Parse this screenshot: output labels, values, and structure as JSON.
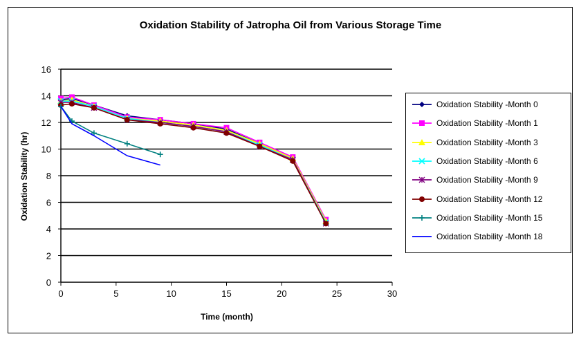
{
  "chart_data": {
    "type": "line",
    "title": "Oxidation Stability of Jatropha Oil from Various Storage Time",
    "xlabel": "Time (month)",
    "ylabel": "Oxidation Stability (hr)",
    "xlim": [
      0,
      30
    ],
    "ylim": [
      0,
      16
    ],
    "xticks": [
      0,
      5,
      10,
      15,
      20,
      25,
      30
    ],
    "yticks": [
      0,
      2,
      4,
      6,
      8,
      10,
      12,
      14,
      16
    ],
    "grid": "horizontal",
    "legend_position": "right",
    "series": [
      {
        "name": "Oxidation Stability -Month 0",
        "color": "#000080",
        "marker": "diamond",
        "x": [
          0,
          1,
          3,
          6,
          9,
          12,
          15,
          18,
          21,
          24
        ],
        "y": [
          13.7,
          13.8,
          13.3,
          12.5,
          12.2,
          11.9,
          11.5,
          10.4,
          9.3,
          4.5
        ]
      },
      {
        "name": "Oxidation Stability -Month 1",
        "color": "#FF00FF",
        "marker": "square",
        "x": [
          0,
          1,
          3,
          6,
          9,
          12,
          15,
          18,
          21,
          24
        ],
        "y": [
          13.8,
          13.9,
          13.3,
          12.4,
          12.2,
          11.9,
          11.6,
          10.5,
          9.4,
          4.7
        ]
      },
      {
        "name": "Oxidation Stability -Month 3",
        "color": "#FFFF00",
        "marker": "triangle",
        "x": [
          0,
          1,
          3,
          6,
          9,
          12,
          15,
          18,
          21,
          24
        ],
        "y": [
          13.6,
          13.7,
          13.2,
          12.3,
          12.1,
          11.8,
          11.4,
          10.4,
          9.3,
          4.6
        ]
      },
      {
        "name": "Oxidation Stability -Month 6",
        "color": "#00FFFF",
        "marker": "x",
        "x": [
          0,
          1,
          3,
          6,
          9,
          12,
          15,
          18,
          21,
          24
        ],
        "y": [
          13.6,
          13.6,
          13.2,
          12.3,
          12.0,
          11.7,
          11.3,
          10.3,
          9.2,
          4.5
        ]
      },
      {
        "name": "Oxidation Stability -Month 9",
        "color": "#800080",
        "marker": "star",
        "x": [
          0,
          1,
          3,
          6,
          9,
          12,
          15,
          18,
          21,
          24
        ],
        "y": [
          13.5,
          13.5,
          13.1,
          12.2,
          12.0,
          11.7,
          11.3,
          10.2,
          9.2,
          4.4
        ]
      },
      {
        "name": "Oxidation Stability -Month 12",
        "color": "#800000",
        "marker": "circle",
        "x": [
          0,
          1,
          3,
          6,
          9,
          12,
          15,
          18,
          21,
          24
        ],
        "y": [
          13.3,
          13.4,
          13.1,
          12.2,
          11.9,
          11.6,
          11.2,
          10.2,
          9.1,
          4.4
        ]
      },
      {
        "name": "Oxidation Stability -Month 15",
        "color": "#008080",
        "marker": "plus",
        "x": [
          0,
          1,
          3,
          6,
          9
        ],
        "y": [
          13.2,
          12.1,
          11.2,
          10.4,
          9.6
        ]
      },
      {
        "name": "Oxidation Stability -Month 18",
        "color": "#0000FF",
        "marker": "none",
        "x": [
          0,
          1,
          3,
          6,
          9
        ],
        "y": [
          13.2,
          11.9,
          11.0,
          9.5,
          8.8
        ]
      }
    ]
  }
}
